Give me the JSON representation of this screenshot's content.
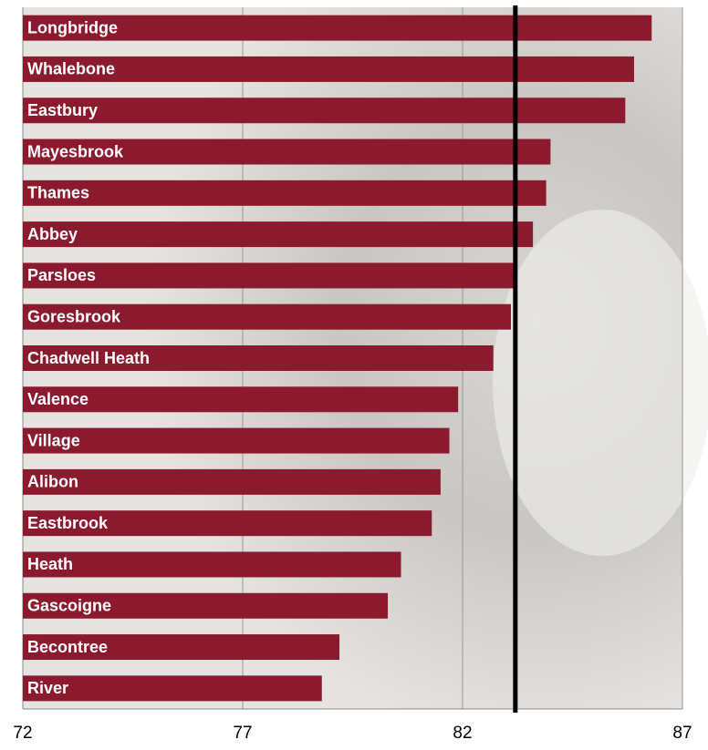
{
  "chart_data": {
    "type": "barh",
    "categories": [
      "Longbridge",
      "Whalebone",
      "Eastbury",
      "Mayesbrook",
      "Thames",
      "Abbey",
      "Parsloes",
      "Goresbrook",
      "Chadwell Heath",
      "Valence",
      "Village",
      "Alibon",
      "Eastbrook",
      "Heath",
      "Gascoigne",
      "Becontree",
      "River"
    ],
    "values": [
      86.3,
      85.9,
      85.7,
      84.0,
      83.9,
      83.6,
      83.2,
      83.1,
      82.7,
      81.9,
      81.7,
      81.5,
      81.3,
      80.6,
      80.3,
      79.2,
      78.8
    ],
    "color": "#8b1a2f",
    "xlim": [
      72,
      87
    ],
    "xticks": [
      72,
      77,
      82,
      87
    ],
    "grid": true,
    "reference_line": 83.2
  }
}
